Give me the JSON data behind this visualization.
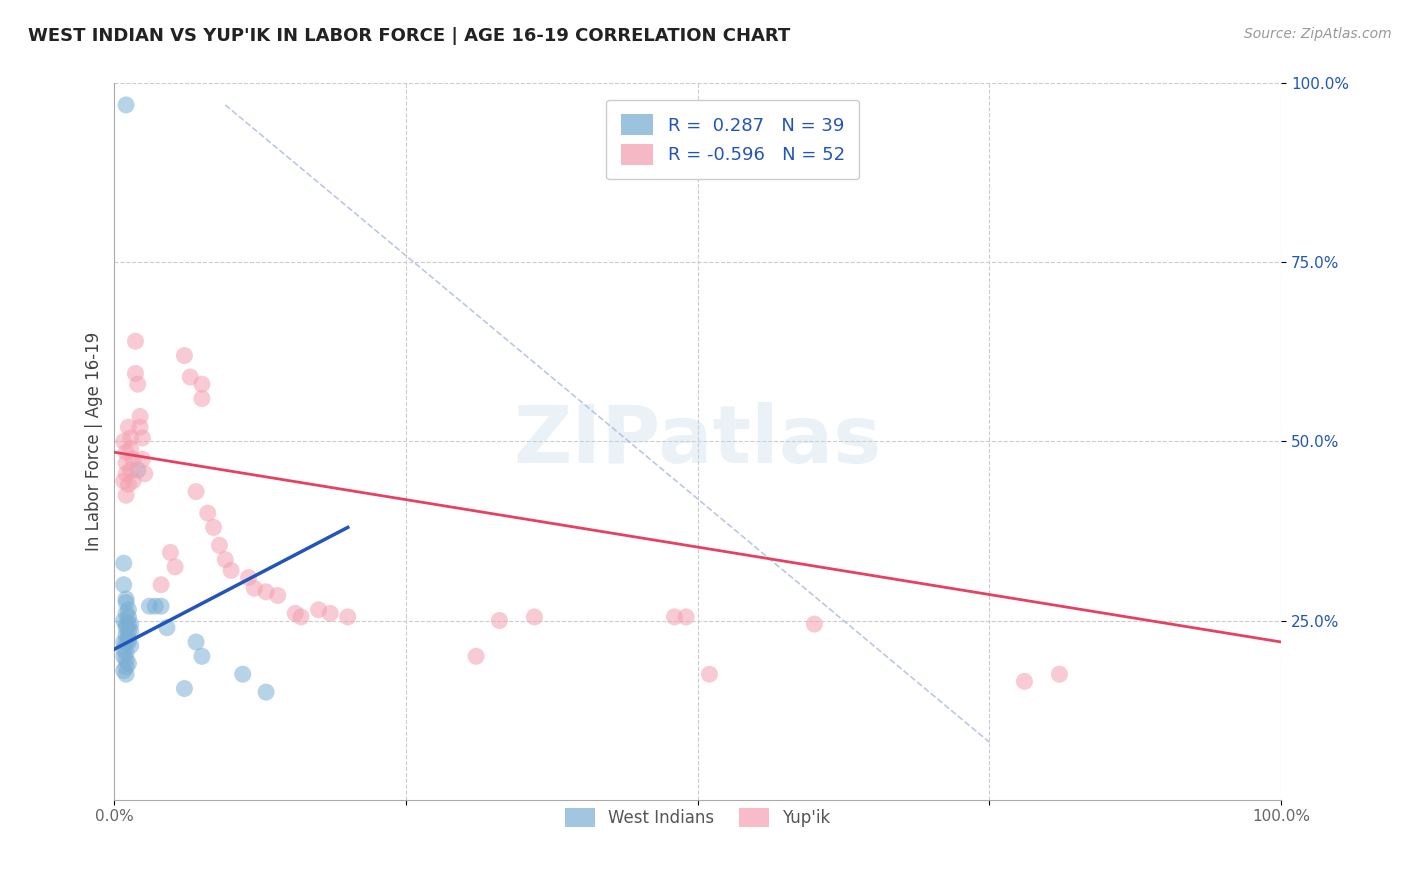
{
  "title": "WEST INDIAN VS YUP'IK IN LABOR FORCE | AGE 16-19 CORRELATION CHART",
  "source": "Source: ZipAtlas.com",
  "ylabel": "In Labor Force | Age 16-19",
  "xlim": [
    0,
    1.0
  ],
  "ylim": [
    0,
    1.0
  ],
  "ytick_positions": [
    0.25,
    0.5,
    0.75,
    1.0
  ],
  "xtick_positions": [
    0.0,
    0.25,
    0.5,
    0.75,
    1.0
  ],
  "grid_color": "#cccccc",
  "bg_color": "#ffffff",
  "watermark_text": "ZIPatlas",
  "legend_R1": " 0.287",
  "legend_N1": "39",
  "legend_R2": "-0.596",
  "legend_N2": "52",
  "blue_color": "#7bafd4",
  "pink_color": "#f4a0b0",
  "blue_line_color": "#2255bb",
  "pink_line_color": "#e84060",
  "dash_color": "#aabbdd",
  "blue_scatter": [
    [
      0.01,
      0.97
    ],
    [
      0.02,
      0.46
    ],
    [
      0.008,
      0.33
    ],
    [
      0.008,
      0.3
    ],
    [
      0.01,
      0.28
    ],
    [
      0.01,
      0.275
    ],
    [
      0.012,
      0.265
    ],
    [
      0.01,
      0.26
    ],
    [
      0.012,
      0.255
    ],
    [
      0.008,
      0.25
    ],
    [
      0.01,
      0.245
    ],
    [
      0.012,
      0.245
    ],
    [
      0.014,
      0.245
    ],
    [
      0.01,
      0.24
    ],
    [
      0.012,
      0.235
    ],
    [
      0.014,
      0.235
    ],
    [
      0.01,
      0.23
    ],
    [
      0.012,
      0.225
    ],
    [
      0.008,
      0.22
    ],
    [
      0.01,
      0.22
    ],
    [
      0.012,
      0.22
    ],
    [
      0.014,
      0.215
    ],
    [
      0.008,
      0.21
    ],
    [
      0.01,
      0.205
    ],
    [
      0.008,
      0.2
    ],
    [
      0.01,
      0.195
    ],
    [
      0.012,
      0.19
    ],
    [
      0.01,
      0.185
    ],
    [
      0.008,
      0.18
    ],
    [
      0.01,
      0.175
    ],
    [
      0.03,
      0.27
    ],
    [
      0.035,
      0.27
    ],
    [
      0.04,
      0.27
    ],
    [
      0.045,
      0.24
    ],
    [
      0.07,
      0.22
    ],
    [
      0.075,
      0.2
    ],
    [
      0.11,
      0.175
    ],
    [
      0.13,
      0.15
    ],
    [
      0.06,
      0.155
    ]
  ],
  "pink_scatter": [
    [
      0.008,
      0.5
    ],
    [
      0.01,
      0.485
    ],
    [
      0.01,
      0.47
    ],
    [
      0.01,
      0.455
    ],
    [
      0.008,
      0.445
    ],
    [
      0.012,
      0.44
    ],
    [
      0.01,
      0.425
    ],
    [
      0.012,
      0.52
    ],
    [
      0.014,
      0.505
    ],
    [
      0.014,
      0.49
    ],
    [
      0.016,
      0.475
    ],
    [
      0.014,
      0.46
    ],
    [
      0.016,
      0.445
    ],
    [
      0.018,
      0.64
    ],
    [
      0.018,
      0.595
    ],
    [
      0.02,
      0.58
    ],
    [
      0.022,
      0.535
    ],
    [
      0.022,
      0.52
    ],
    [
      0.024,
      0.505
    ],
    [
      0.024,
      0.475
    ],
    [
      0.026,
      0.455
    ],
    [
      0.04,
      0.3
    ],
    [
      0.048,
      0.345
    ],
    [
      0.052,
      0.325
    ],
    [
      0.06,
      0.62
    ],
    [
      0.065,
      0.59
    ],
    [
      0.07,
      0.43
    ],
    [
      0.075,
      0.58
    ],
    [
      0.075,
      0.56
    ],
    [
      0.08,
      0.4
    ],
    [
      0.085,
      0.38
    ],
    [
      0.09,
      0.355
    ],
    [
      0.095,
      0.335
    ],
    [
      0.1,
      0.32
    ],
    [
      0.115,
      0.31
    ],
    [
      0.12,
      0.295
    ],
    [
      0.13,
      0.29
    ],
    [
      0.14,
      0.285
    ],
    [
      0.155,
      0.26
    ],
    [
      0.16,
      0.255
    ],
    [
      0.175,
      0.265
    ],
    [
      0.185,
      0.26
    ],
    [
      0.2,
      0.255
    ],
    [
      0.31,
      0.2
    ],
    [
      0.33,
      0.25
    ],
    [
      0.36,
      0.255
    ],
    [
      0.48,
      0.255
    ],
    [
      0.49,
      0.255
    ],
    [
      0.51,
      0.175
    ],
    [
      0.6,
      0.245
    ],
    [
      0.78,
      0.165
    ],
    [
      0.81,
      0.175
    ]
  ],
  "blue_line": [
    [
      0.0,
      0.21
    ],
    [
      0.2,
      0.38
    ]
  ],
  "pink_line": [
    [
      0.0,
      0.485
    ],
    [
      1.0,
      0.22
    ]
  ],
  "dash_line": [
    [
      0.095,
      0.97
    ],
    [
      0.75,
      0.08
    ]
  ]
}
